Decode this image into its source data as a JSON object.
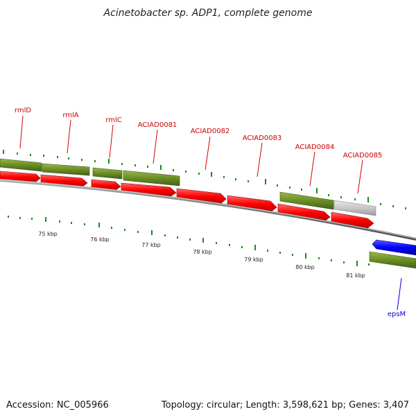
{
  "title": "Acinetobacter sp. ADP1, complete genome",
  "footer": {
    "accession": "Accession: NC_005966",
    "summary": "Topology: circular; Length: 3,598,621 bp; Genes: 3,407"
  },
  "colors": {
    "forward_gene": "#6b8e23",
    "reverse_gene": "#ff0000",
    "grey_gene": "#c8c8c8",
    "blue_gene": "#0000ff",
    "tick": "#1a8a1a",
    "backbone": "#7a7a7a",
    "label_red": "#cc0000",
    "label_blue": "#0000cc"
  },
  "gene_labels": [
    {
      "id": "rmlD",
      "text": "rmlD"
    },
    {
      "id": "rmlA",
      "text": "rmlA"
    },
    {
      "id": "rmlC",
      "text": "rmlC"
    },
    {
      "id": "ACIAD0081",
      "text": "ACIAD0081"
    },
    {
      "id": "ACIAD0082",
      "text": "ACIAD0082"
    },
    {
      "id": "ACIAD0083",
      "text": "ACIAD0083"
    },
    {
      "id": "ACIAD0084",
      "text": "ACIAD0084"
    },
    {
      "id": "ACIAD0085",
      "text": "ACIAD0085"
    },
    {
      "id": "epsM",
      "text": "epsM"
    }
  ],
  "kbp_labels": [
    "75 kbp",
    "76 kbp",
    "77 kbp",
    "78 kbp",
    "79 kbp",
    "80 kbp",
    "81 kbp"
  ]
}
